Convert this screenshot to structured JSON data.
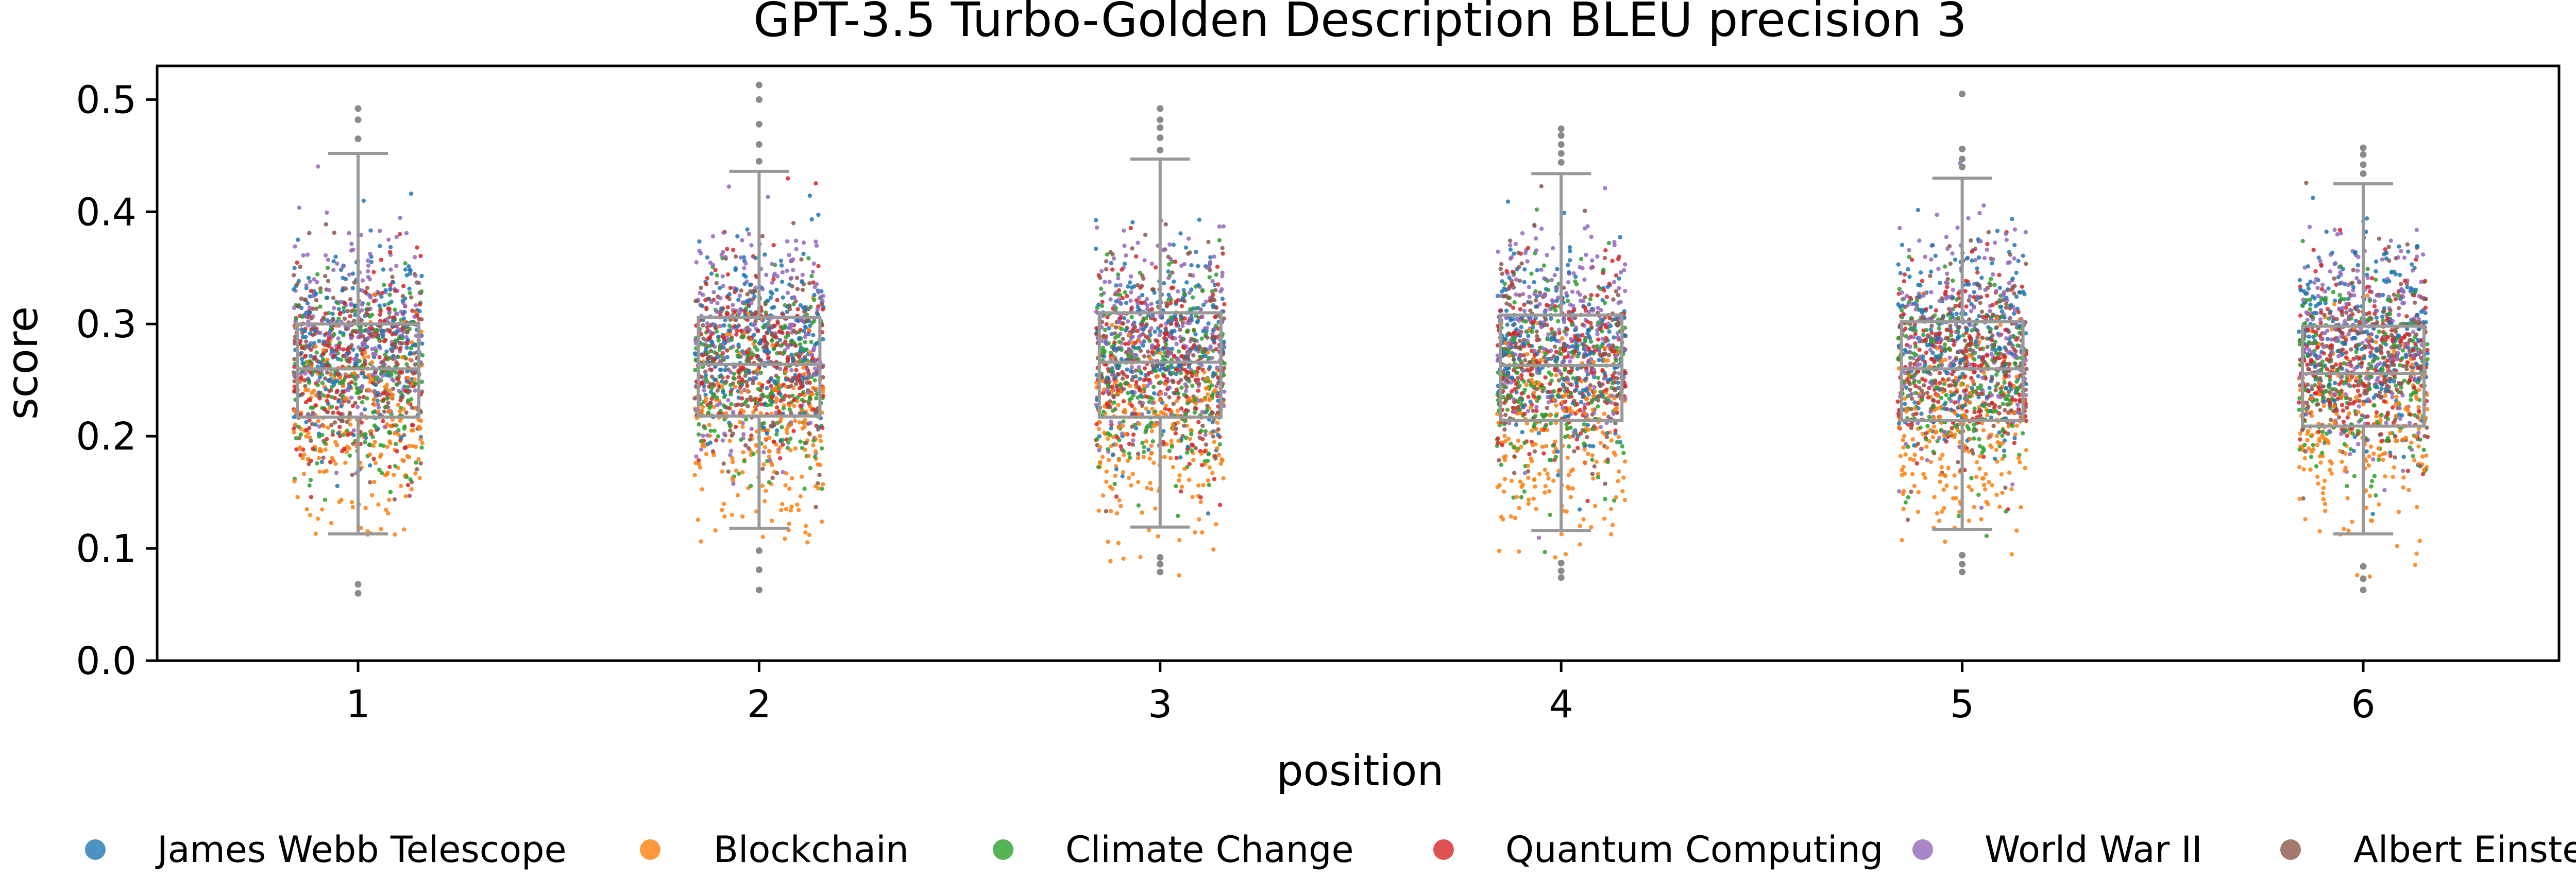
{
  "chart_data": {
    "type": "box-strip",
    "title": "GPT-3.5 Turbo-Golden Description BLEU precision 3",
    "xlabel": "position",
    "ylabel": "score",
    "ylim": [
      0.0,
      0.53
    ],
    "yticks": [
      "0.0",
      "0.1",
      "0.2",
      "0.3",
      "0.4",
      "0.5"
    ],
    "categories": [
      "1",
      "2",
      "3",
      "4",
      "5",
      "6"
    ],
    "box_color": "#999999",
    "boxes": [
      {
        "position": "1",
        "whisker_low": 0.113,
        "q1": 0.217,
        "median": 0.26,
        "q3": 0.3,
        "whisker_high": 0.452,
        "outliers": [
          0.06,
          0.068,
          0.465,
          0.482,
          0.492
        ]
      },
      {
        "position": "2",
        "whisker_low": 0.118,
        "q1": 0.218,
        "median": 0.264,
        "q3": 0.306,
        "whisker_high": 0.436,
        "outliers": [
          0.063,
          0.081,
          0.098,
          0.445,
          0.46,
          0.478,
          0.5,
          0.513
        ]
      },
      {
        "position": "3",
        "whisker_low": 0.119,
        "q1": 0.217,
        "median": 0.266,
        "q3": 0.31,
        "whisker_high": 0.447,
        "outliers": [
          0.079,
          0.086,
          0.092,
          0.455,
          0.466,
          0.475,
          0.482,
          0.492
        ]
      },
      {
        "position": "4",
        "whisker_low": 0.116,
        "q1": 0.214,
        "median": 0.263,
        "q3": 0.308,
        "whisker_high": 0.434,
        "outliers": [
          0.074,
          0.08,
          0.087,
          0.444,
          0.452,
          0.46,
          0.468,
          0.474
        ]
      },
      {
        "position": "5",
        "whisker_low": 0.117,
        "q1": 0.214,
        "median": 0.26,
        "q3": 0.302,
        "whisker_high": 0.43,
        "outliers": [
          0.079,
          0.086,
          0.094,
          0.44,
          0.447,
          0.456,
          0.505
        ]
      },
      {
        "position": "6",
        "whisker_low": 0.113,
        "q1": 0.209,
        "median": 0.256,
        "q3": 0.298,
        "whisker_high": 0.425,
        "outliers": [
          0.063,
          0.073,
          0.084,
          0.434,
          0.442,
          0.451,
          0.457
        ]
      }
    ],
    "series": [
      {
        "name": "James Webb Telescope",
        "color": "#1f77b4",
        "center": 0.285,
        "spread": 0.045
      },
      {
        "name": "Blockchain",
        "color": "#ff7f0e",
        "center": 0.205,
        "spread": 0.045
      },
      {
        "name": "Climate Change",
        "color": "#2ca02c",
        "center": 0.255,
        "spread": 0.045
      },
      {
        "name": "Quantum Computing",
        "color": "#d62728",
        "center": 0.265,
        "spread": 0.042
      },
      {
        "name": "World War II",
        "color": "#9467bd",
        "center": 0.29,
        "spread": 0.05
      },
      {
        "name": "Albert Einstein",
        "color": "#8c564b",
        "center": 0.27,
        "spread": 0.045
      }
    ],
    "legend": "bottom",
    "grid": false
  }
}
